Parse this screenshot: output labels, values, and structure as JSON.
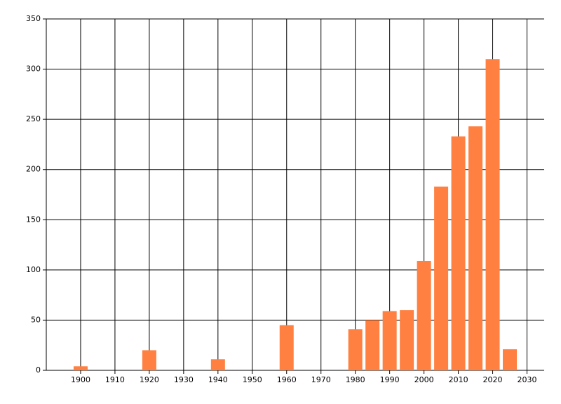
{
  "chart_data": {
    "type": "bar",
    "x": [
      1900,
      1920,
      1940,
      1960,
      1980,
      1985,
      1990,
      1995,
      2000,
      2005,
      2010,
      2015,
      2020,
      2025
    ],
    "values": [
      4,
      20,
      11,
      45,
      41,
      50,
      59,
      60,
      109,
      183,
      233,
      243,
      310,
      21
    ],
    "color": "#ff8040",
    "xlim": [
      1890,
      2035
    ],
    "xticks": [
      1900,
      1910,
      1920,
      1930,
      1940,
      1950,
      1960,
      1970,
      1980,
      1990,
      2000,
      2010,
      2020,
      2030
    ],
    "ylim": [
      0,
      350
    ],
    "yticks": [
      0,
      50,
      100,
      150,
      200,
      250,
      300,
      350
    ],
    "grid": true
  }
}
